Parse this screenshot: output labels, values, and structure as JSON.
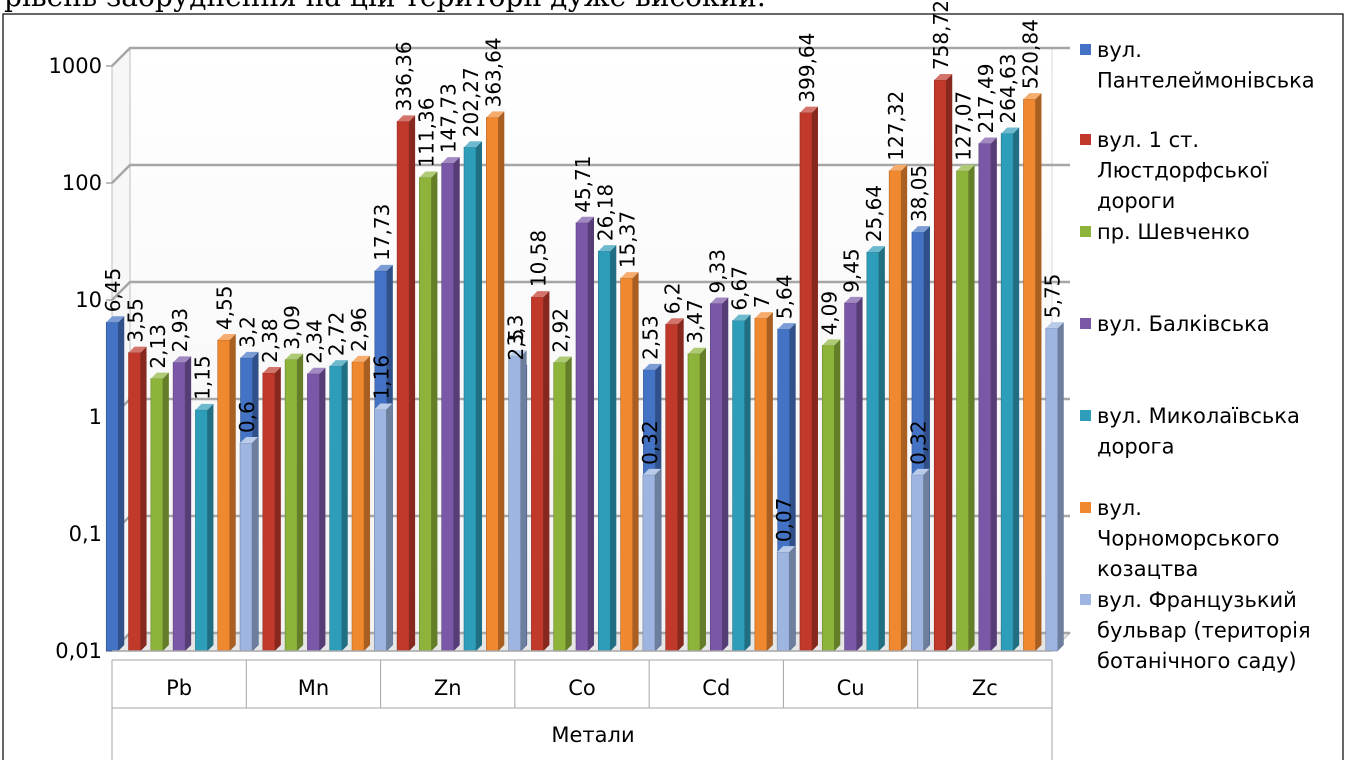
{
  "top_text": "рівень забруднення на цій території дуже високий.",
  "chart_data": {
    "type": "bar",
    "yscale": "log",
    "ylim": [
      0.01,
      1000
    ],
    "ytick_labels": [
      "0,01",
      "0,1",
      "1",
      "10",
      "100",
      "1000"
    ],
    "categories": [
      "Pb",
      "Mn",
      "Zn",
      "Co",
      "Cd",
      "Cu",
      "Zc"
    ],
    "xlabel": "Метали",
    "legend_position": "right",
    "grid": true,
    "series": [
      {
        "name": "вул. Пантелеймонівська",
        "name_lines": [
          "вул.",
          "Пантелеймонівська"
        ],
        "color": "#4472C4",
        "values": [
          6.45,
          3.2,
          17.73,
          2.5,
          2.53,
          5.64,
          38.05
        ],
        "labels": [
          "6,45",
          "3,2",
          "17,73",
          "2,5",
          "2,53",
          "5,64",
          "38,05"
        ]
      },
      {
        "name": "вул. 1 ст. Люстдорфської дороги",
        "name_lines": [
          "вул. 1 ст.",
          "Люстдорфської",
          "дороги"
        ],
        "color": "#C0392B",
        "values": [
          3.55,
          2.38,
          336.36,
          10.58,
          6.2,
          399.64,
          758.72
        ],
        "labels": [
          "3,55",
          "2,38",
          "336,36",
          "10,58",
          "6,2",
          "399,64",
          "758,72"
        ]
      },
      {
        "name": "пр. Шевченко",
        "name_lines": [
          "пр. Шевченко"
        ],
        "color": "#8DB33A",
        "values": [
          2.13,
          3.09,
          111.36,
          2.92,
          3.47,
          4.09,
          127.07
        ],
        "labels": [
          "2,13",
          "3,09",
          "111,36",
          "2,92",
          "3,47",
          "4,09",
          "127,07"
        ]
      },
      {
        "name": "вул. Балківська",
        "name_lines": [
          "вул. Балківська"
        ],
        "color": "#7B57A8",
        "values": [
          2.93,
          2.34,
          147.73,
          45.71,
          9.33,
          9.45,
          217.49
        ],
        "labels": [
          "2,93",
          "2,34",
          "147,73",
          "45,71",
          "9,33",
          "9,45",
          "217,49"
        ]
      },
      {
        "name": "вул. Миколаївська дорога",
        "name_lines": [
          "вул. Миколаївська",
          "дорога"
        ],
        "color": "#2E9DBA",
        "values": [
          1.15,
          2.72,
          202.27,
          26.18,
          6.67,
          25.64,
          264.63
        ],
        "labels": [
          "1,15",
          "2,72",
          "202,27",
          "26,18",
          "6,67",
          "25,64",
          "264,63"
        ]
      },
      {
        "name": "вул. Чорноморського козацтва",
        "name_lines": [
          "вул.",
          "Чорноморського",
          "козацтва"
        ],
        "color": "#F0882F",
        "values": [
          4.55,
          2.96,
          363.64,
          15.37,
          7,
          127.32,
          520.84
        ],
        "labels": [
          "4,55",
          "2,96",
          "363,64",
          "15,37",
          "7",
          "127,32",
          "520,84"
        ]
      },
      {
        "name": "вул. Французький бульвар (територія ботанічного саду)",
        "name_lines": [
          "вул. Французький",
          "бульвар (територія",
          "ботанічного саду)"
        ],
        "color": "#9DB5E0",
        "values": [
          0.6,
          1.16,
          3.3,
          0.32,
          0.07,
          0.32,
          5.75
        ],
        "labels": [
          "0,6",
          "1,16",
          "3,3",
          "0,32",
          "0,07",
          "0,32",
          "5,75"
        ]
      }
    ]
  }
}
